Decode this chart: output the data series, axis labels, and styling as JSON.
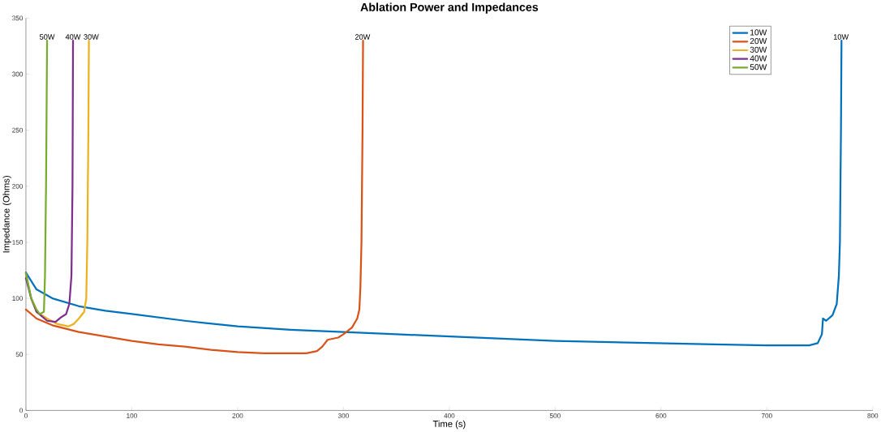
{
  "chart_data": {
    "type": "line",
    "title": "Ablation Power and Impedances",
    "xlabel": "Time (s)",
    "ylabel": "Impedance (Ohms)",
    "xlim": [
      0,
      800
    ],
    "xticks": [
      0,
      100,
      200,
      300,
      400,
      500,
      600,
      700,
      800
    ],
    "ylim": [
      0,
      350
    ],
    "yticks": [
      0,
      50,
      100,
      150,
      200,
      250,
      300,
      350
    ],
    "grid": false,
    "legend": "top right",
    "marker": "none",
    "line_style": "solid",
    "series": [
      {
        "name": "10W",
        "color": "#0072bd",
        "x": [
          0,
          10,
          25,
          50,
          75,
          100,
          150,
          200,
          250,
          300,
          350,
          400,
          450,
          500,
          550,
          600,
          650,
          700,
          740,
          748,
          752,
          753,
          756,
          762,
          766,
          768,
          769,
          770,
          770.5
        ],
        "values": [
          123,
          108,
          100,
          93,
          89,
          86,
          80,
          75,
          72,
          70,
          68,
          66,
          64,
          62,
          61,
          60,
          59,
          58,
          58,
          60,
          68,
          82,
          80,
          85,
          95,
          120,
          150,
          250,
          330
        ]
      },
      {
        "name": "20W",
        "color": "#d95319",
        "x": [
          0,
          10,
          25,
          50,
          75,
          100,
          125,
          150,
          175,
          200,
          225,
          250,
          265,
          275,
          280,
          285,
          295,
          300,
          308,
          313,
          315,
          316,
          317,
          318,
          318.5
        ],
        "values": [
          90,
          82,
          76,
          70,
          66,
          62,
          59,
          57,
          54,
          52,
          51,
          51,
          51,
          53,
          57,
          63,
          65,
          68,
          74,
          82,
          90,
          110,
          150,
          250,
          330
        ]
      },
      {
        "name": "30W",
        "color": "#edb120",
        "x": [
          0,
          5,
          10,
          20,
          30,
          40,
          45,
          50,
          55,
          57,
          58,
          59,
          59.5
        ],
        "values": [
          122,
          100,
          88,
          82,
          77,
          75,
          77,
          82,
          88,
          100,
          150,
          250,
          330
        ]
      },
      {
        "name": "40W",
        "color": "#7e2f8e",
        "x": [
          0,
          5,
          10,
          20,
          28,
          33,
          38,
          41,
          43,
          44,
          44.5
        ],
        "values": [
          118,
          100,
          88,
          80,
          79,
          83,
          86,
          95,
          120,
          200,
          330
        ]
      },
      {
        "name": "50W",
        "color": "#77ac30",
        "x": [
          0,
          5,
          10,
          13,
          17,
          18,
          19,
          20
        ],
        "values": [
          122,
          100,
          90,
          86,
          88,
          120,
          200,
          330
        ]
      }
    ],
    "annotations": [
      {
        "text": "50W",
        "x": 20,
        "y": 330
      },
      {
        "text": "40W",
        "x": 44.5,
        "y": 330
      },
      {
        "text": "30W",
        "x": 59.5,
        "y": 330
      },
      {
        "text": "20W",
        "x": 318,
        "y": 330
      },
      {
        "text": "10W",
        "x": 770,
        "y": 330
      }
    ]
  }
}
